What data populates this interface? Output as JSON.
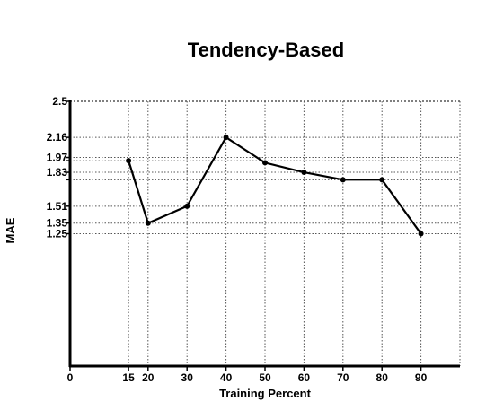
{
  "chart_data": {
    "type": "line",
    "title": "Tendency-Based",
    "xlabel": "Training Percent",
    "ylabel": "MAE",
    "xlim": [
      0,
      100
    ],
    "ylim": [
      0,
      2.5
    ],
    "x_ticks": [
      0,
      15,
      20,
      30,
      40,
      50,
      60,
      70,
      80,
      90
    ],
    "y_ticks": [
      1.25,
      1.35,
      1.51,
      1.83,
      1.97,
      2.16,
      2.5
    ],
    "y_extra_grid": [
      1.76,
      1.94
    ],
    "grid": true,
    "legend": "none",
    "colors": {
      "line": "#000000",
      "grid": "#555555",
      "axis": "#000000"
    },
    "series": [
      {
        "x": [
          15,
          20,
          30,
          40,
          50,
          60,
          70,
          80,
          90
        ],
        "values": [
          1.94,
          1.35,
          1.51,
          2.16,
          1.92,
          1.83,
          1.76,
          1.76,
          1.25
        ]
      }
    ]
  }
}
